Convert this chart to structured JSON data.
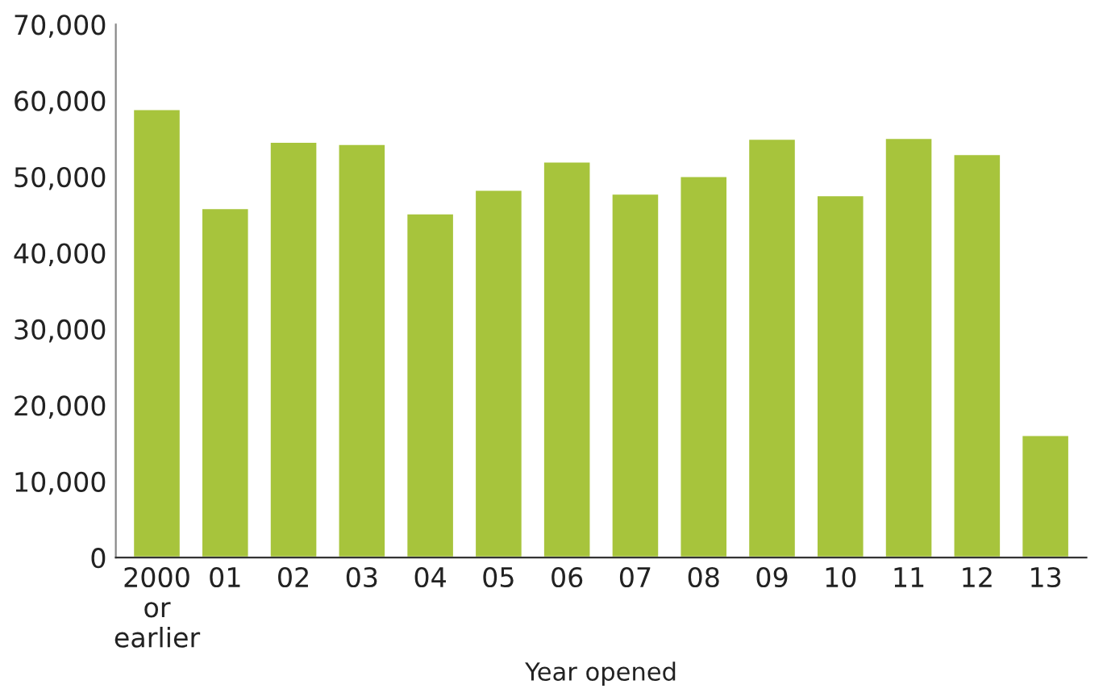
{
  "chart_data": {
    "type": "bar",
    "xlabel": "Year opened",
    "categories": [
      "2000\nor\nearlier",
      "01",
      "02",
      "03",
      "04",
      "05",
      "06",
      "07",
      "08",
      "09",
      "10",
      "11",
      "12",
      "13"
    ],
    "values": [
      58900,
      45900,
      54600,
      54300,
      45200,
      48300,
      52000,
      47800,
      50100,
      55000,
      47600,
      55100,
      53000,
      16100
    ],
    "color": "#a7c43c",
    "ylim": [
      0,
      70000
    ],
    "yticks": [
      {
        "value": 0,
        "label": "0"
      },
      {
        "value": 10000,
        "label": "10,000"
      },
      {
        "value": 20000,
        "label": "20,000"
      },
      {
        "value": 30000,
        "label": "30,000"
      },
      {
        "value": 40000,
        "label": "40,000"
      },
      {
        "value": 50000,
        "label": "50,000"
      },
      {
        "value": 60000,
        "label": "60,000"
      },
      {
        "value": 70000,
        "label": "70,000"
      }
    ],
    "grid": false,
    "legend": false
  }
}
